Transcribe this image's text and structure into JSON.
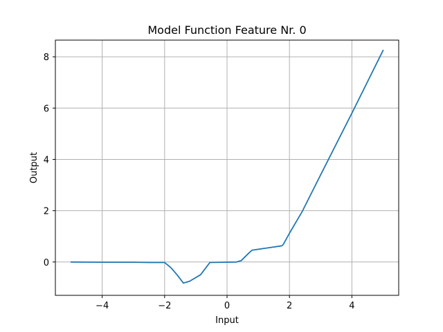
{
  "chart_data": {
    "type": "line",
    "title": "Model Function Feature Nr. 0",
    "xlabel": "Input",
    "ylabel": "Output",
    "xlim": [
      -5.5,
      5.5
    ],
    "ylim": [
      -1.3,
      8.65
    ],
    "xticks": [
      -4,
      -2,
      0,
      2,
      4
    ],
    "xtick_labels": [
      "−4",
      "−2",
      "0",
      "2",
      "4"
    ],
    "yticks": [
      0,
      2,
      4,
      6,
      8
    ],
    "ytick_labels": [
      "0",
      "2",
      "4",
      "6",
      "8"
    ],
    "grid": true,
    "series": [
      {
        "color": "#1f77b4",
        "x": [
          -5,
          -4,
          -3,
          -2.5,
          -2.0,
          -1.8,
          -1.6,
          -1.4,
          -1.2,
          -0.85,
          -0.55,
          0.3,
          0.45,
          0.7,
          0.8,
          1.75,
          1.8,
          2.0,
          2.4,
          3.0,
          4.0,
          5.0
        ],
        "y": [
          0.0,
          -0.01,
          -0.01,
          -0.02,
          -0.02,
          -0.22,
          -0.5,
          -0.82,
          -0.75,
          -0.5,
          -0.02,
          0.0,
          0.05,
          0.35,
          0.46,
          0.63,
          0.68,
          1.12,
          1.95,
          3.4,
          5.8,
          8.25
        ]
      }
    ]
  }
}
